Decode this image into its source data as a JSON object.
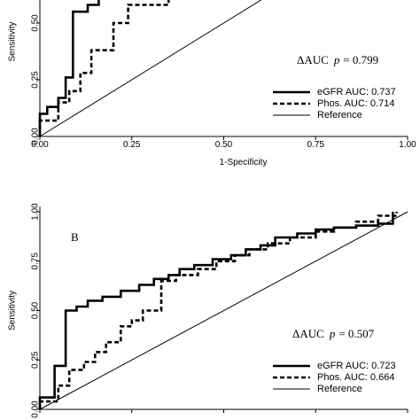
{
  "chart_data": [
    {
      "type": "line",
      "panel": "A",
      "panel_label": "",
      "xlabel": "1-Specificity",
      "ylabel": "Sensitivity",
      "xlim": [
        0,
        1
      ],
      "ylim": [
        0,
        0.75
      ],
      "xticks": [
        "0.00",
        "0.25",
        "0.50",
        "0.75",
        "1.00"
      ],
      "yticks": [
        "0.00",
        "0.25",
        "0.50"
      ],
      "auc_prefix": "ΔAUC",
      "auc_p": "p",
      "auc_value": "= 0.799",
      "legend_position": "lower-right",
      "series": [
        {
          "name": "eGFR AUC: 0.737",
          "style": "solid-thick",
          "x": [
            0,
            0,
            0.02,
            0.02,
            0.05,
            0.05,
            0.07,
            0.07,
            0.09,
            0.09,
            0.13,
            0.13,
            0.16,
            0.16,
            0.18,
            0.18,
            0.2,
            0.2,
            0.35,
            0.35
          ],
          "y": [
            0,
            0.1,
            0.1,
            0.13,
            0.13,
            0.17,
            0.17,
            0.26,
            0.26,
            0.55,
            0.55,
            0.58,
            0.58,
            0.61,
            0.61,
            0.63,
            0.63,
            0.66,
            0.66,
            0.68
          ]
        },
        {
          "name": "Phos. AUC: 0.714",
          "style": "dashed-thick",
          "x": [
            0,
            0,
            0.05,
            0.05,
            0.08,
            0.08,
            0.11,
            0.11,
            0.14,
            0.14,
            0.2,
            0.2,
            0.24,
            0.24,
            0.35,
            0.35,
            0.36,
            0.36
          ],
          "y": [
            0,
            0.07,
            0.07,
            0.15,
            0.15,
            0.2,
            0.2,
            0.28,
            0.28,
            0.38,
            0.38,
            0.5,
            0.5,
            0.58,
            0.58,
            0.63,
            0.63,
            0.68
          ]
        },
        {
          "name": "Reference",
          "style": "solid-thin",
          "x": [
            0,
            0.68
          ],
          "y": [
            0,
            0.68
          ]
        }
      ]
    },
    {
      "type": "line",
      "panel": "B",
      "panel_label": "B",
      "xlabel": "",
      "ylabel": "Sensitivity",
      "xlim": [
        0,
        1
      ],
      "ylim": [
        0,
        1
      ],
      "xticks": [],
      "yticks": [
        "0.00",
        "0.25",
        "0.50",
        "0.75",
        "1.00"
      ],
      "auc_prefix": "ΔAUC",
      "auc_p": "p",
      "auc_value": "= 0.507",
      "legend_position": "lower-right",
      "series": [
        {
          "name": "eGFR AUC: 0.723",
          "style": "solid-thick",
          "x": [
            0,
            0,
            0.04,
            0.04,
            0.07,
            0.07,
            0.1,
            0.1,
            0.13,
            0.13,
            0.17,
            0.17,
            0.22,
            0.22,
            0.27,
            0.27,
            0.31,
            0.31,
            0.35,
            0.35,
            0.38,
            0.38,
            0.42,
            0.42,
            0.47,
            0.47,
            0.52,
            0.52,
            0.56,
            0.56,
            0.6,
            0.6,
            0.64,
            0.64,
            0.7,
            0.7,
            0.75,
            0.75,
            0.8,
            0.8,
            0.86,
            0.86,
            0.92,
            0.92,
            0.96,
            0.96
          ],
          "y": [
            0,
            0.06,
            0.06,
            0.22,
            0.22,
            0.5,
            0.5,
            0.52,
            0.52,
            0.55,
            0.55,
            0.57,
            0.57,
            0.6,
            0.6,
            0.63,
            0.63,
            0.66,
            0.66,
            0.68,
            0.68,
            0.71,
            0.71,
            0.73,
            0.73,
            0.76,
            0.76,
            0.78,
            0.78,
            0.81,
            0.81,
            0.83,
            0.83,
            0.87,
            0.87,
            0.89,
            0.89,
            0.91,
            0.91,
            0.92,
            0.92,
            0.93,
            0.93,
            0.94,
            0.94,
            1.0
          ]
        },
        {
          "name": "Phos. AUC: 0.664",
          "style": "dashed-thick",
          "x": [
            0,
            0,
            0.05,
            0.05,
            0.08,
            0.08,
            0.12,
            0.12,
            0.15,
            0.15,
            0.18,
            0.18,
            0.22,
            0.22,
            0.25,
            0.25,
            0.28,
            0.28,
            0.33,
            0.33,
            0.37,
            0.37,
            0.43,
            0.43,
            0.48,
            0.48,
            0.53,
            0.53,
            0.57,
            0.57,
            0.62,
            0.62,
            0.68,
            0.68,
            0.75,
            0.75,
            0.8,
            0.8,
            0.86,
            0.86,
            0.92,
            0.92,
            0.97,
            0.97
          ],
          "y": [
            0,
            0.04,
            0.04,
            0.12,
            0.12,
            0.2,
            0.2,
            0.24,
            0.24,
            0.29,
            0.29,
            0.34,
            0.34,
            0.42,
            0.42,
            0.45,
            0.45,
            0.5,
            0.5,
            0.65,
            0.65,
            0.68,
            0.68,
            0.71,
            0.71,
            0.75,
            0.75,
            0.78,
            0.78,
            0.81,
            0.81,
            0.84,
            0.84,
            0.87,
            0.87,
            0.9,
            0.9,
            0.92,
            0.92,
            0.95,
            0.95,
            0.98,
            0.98,
            1.0
          ]
        },
        {
          "name": "Reference",
          "style": "solid-thin",
          "x": [
            0,
            1
          ],
          "y": [
            0,
            1
          ]
        }
      ]
    }
  ]
}
